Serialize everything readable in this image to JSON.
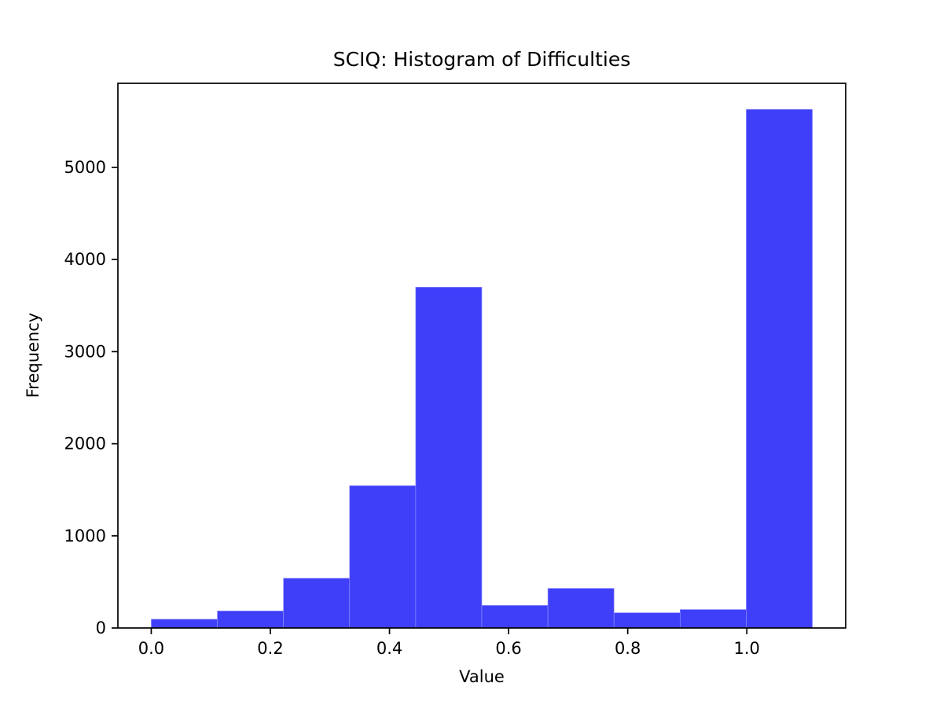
{
  "chart_data": {
    "type": "bar",
    "subtype": "histogram",
    "title": "SCIQ: Histogram of Difficulties",
    "xlabel": "Value",
    "ylabel": "Frequency",
    "bin_edges": [
      0.0,
      0.111,
      0.222,
      0.333,
      0.444,
      0.555,
      0.666,
      0.777,
      0.888,
      0.999,
      1.11
    ],
    "counts": [
      95,
      185,
      540,
      1545,
      3700,
      245,
      430,
      165,
      200,
      5630
    ],
    "x_ticks": [
      0.0,
      0.2,
      0.4,
      0.6,
      0.8,
      1.0
    ],
    "x_tick_labels": [
      "0.0",
      "0.2",
      "0.4",
      "0.6",
      "0.8",
      "1.0"
    ],
    "y_ticks": [
      0,
      1000,
      2000,
      3000,
      4000,
      5000
    ],
    "y_tick_labels": [
      "0",
      "1000",
      "2000",
      "3000",
      "4000",
      "5000"
    ],
    "xlim": [
      -0.056,
      1.166
    ],
    "ylim": [
      0,
      5913
    ],
    "grid": false,
    "legend": null,
    "colors": {
      "bar_fill": "#3f3ffa",
      "bar_edge_highlight": "#8d8dfd",
      "axis": "#000000",
      "text": "#000000",
      "background": "#ffffff"
    }
  }
}
